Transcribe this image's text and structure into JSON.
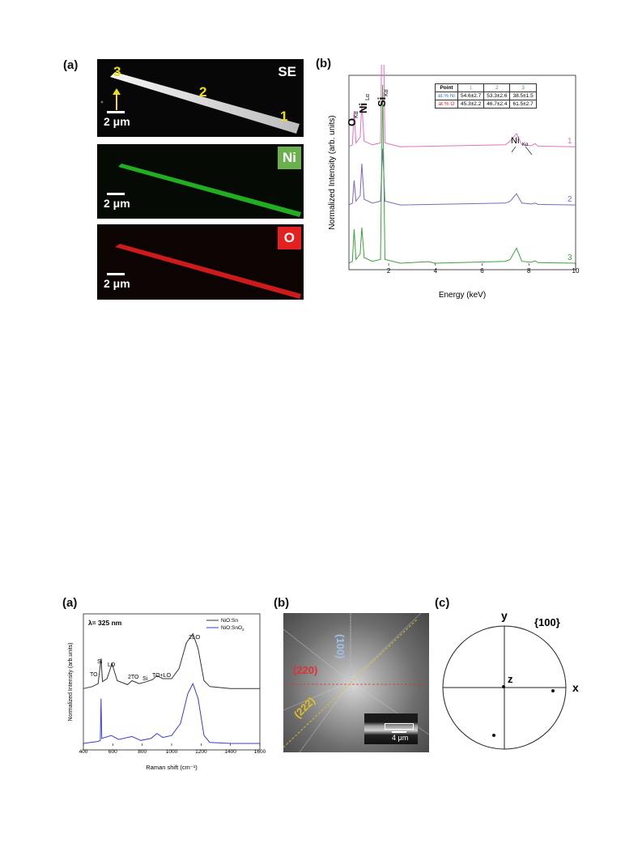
{
  "fig1": {
    "panel_a": {
      "label": "(a)",
      "se": {
        "tag": "SE",
        "markers": [
          "3",
          "2",
          "1"
        ],
        "scale": "2 μm"
      },
      "ni": {
        "tag": "Ni",
        "scale": "2 μm"
      },
      "o": {
        "tag": "O",
        "scale": "2 μm"
      }
    },
    "panel_b": {
      "label": "(b)",
      "peak_labels": {
        "o": "O",
        "o_sub": "Kα",
        "ni_l": "Ni",
        "ni_l_sub": "Lα",
        "si": "Si",
        "si_sub": "Kα",
        "ni_k": "Ni",
        "ni_k_sub": "Kα"
      },
      "table": {
        "headers": [
          "Point",
          "1",
          "2",
          "3"
        ],
        "rows": [
          [
            "at.% Ni",
            "54.6±2.7",
            "53.3±2.6",
            "38.5±1.5"
          ],
          [
            "at.% O",
            "45.3±2.2",
            "46.7±2.4",
            "61.5±2.7"
          ]
        ]
      }
    }
  },
  "fig2": {
    "panel_a": {
      "label": "(a)",
      "wavelength": "λ= 325 nm",
      "peaks": [
        "TO",
        "Si",
        "LO",
        "2TO",
        "Si",
        "TO+LO",
        "2LO"
      ],
      "legend_sup": "2"
    },
    "panel_b": {
      "label": "(b)",
      "dir100": "(100)",
      "dir220": "(220)",
      "dir222": "(222)",
      "inset_scale": "4 μm"
    },
    "panel_c": {
      "label": "(c)",
      "title": "{100}",
      "axis_y": "y",
      "axis_x": "x",
      "axis_z": "z"
    }
  },
  "chart_data": [
    {
      "type": "line",
      "xlabel": "Energy (keV)",
      "ylabel": "Normalized Intensity (arb. units)",
      "xlim": [
        0.3,
        10
      ],
      "xticks": [
        "2",
        "4",
        "6",
        "8",
        "10"
      ],
      "grid": false,
      "series": [
        {
          "name": "1",
          "color": "#e36fc4",
          "offset": 0.62,
          "points": [
            [
              0.3,
              0
            ],
            [
              0.45,
              0.01
            ],
            [
              0.52,
              0.19
            ],
            [
              0.6,
              0.02
            ],
            [
              0.78,
              0.05
            ],
            [
              0.85,
              0.23
            ],
            [
              0.95,
              0.03
            ],
            [
              1.3,
              0.01
            ],
            [
              1.65,
              0.02
            ],
            [
              1.74,
              0.9
            ],
            [
              1.84,
              0.02
            ],
            [
              2.5,
              0
            ],
            [
              7.0,
              0.01
            ],
            [
              7.2,
              0.03
            ],
            [
              7.47,
              0.07
            ],
            [
              7.7,
              0.01
            ],
            [
              8.1,
              0.005
            ],
            [
              8.26,
              0.016
            ],
            [
              8.4,
              0.003
            ],
            [
              10,
              0
            ]
          ]
        },
        {
          "name": "2",
          "color": "#8064bf",
          "offset": 0.31,
          "points": [
            [
              0.3,
              0
            ],
            [
              0.45,
              0.01
            ],
            [
              0.52,
              0.13
            ],
            [
              0.6,
              0.02
            ],
            [
              0.78,
              0.05
            ],
            [
              0.85,
              0.22
            ],
            [
              0.95,
              0.03
            ],
            [
              1.3,
              0.01
            ],
            [
              1.65,
              0.02
            ],
            [
              1.74,
              0.3
            ],
            [
              1.84,
              0.02
            ],
            [
              2.5,
              0
            ],
            [
              7.0,
              0.01
            ],
            [
              7.2,
              0.02
            ],
            [
              7.47,
              0.06
            ],
            [
              7.7,
              0.01
            ],
            [
              8.1,
              0.005
            ],
            [
              8.26,
              0.01
            ],
            [
              8.4,
              0.003
            ],
            [
              10,
              0
            ]
          ]
        },
        {
          "name": "3",
          "color": "#3aa33a",
          "offset": 0.0,
          "points": [
            [
              0.3,
              0
            ],
            [
              0.45,
              0.01
            ],
            [
              0.52,
              0.18
            ],
            [
              0.6,
              0.02
            ],
            [
              0.78,
              0.05
            ],
            [
              0.85,
              0.19
            ],
            [
              0.95,
              0.03
            ],
            [
              1.3,
              0.01
            ],
            [
              1.65,
              0.02
            ],
            [
              1.74,
              0.95
            ],
            [
              1.84,
              0.02
            ],
            [
              2.5,
              0
            ],
            [
              3.69,
              0.008
            ],
            [
              4.0,
              0
            ],
            [
              7.0,
              0.01
            ],
            [
              7.2,
              0.02
            ],
            [
              7.47,
              0.08
            ],
            [
              7.7,
              0.01
            ],
            [
              8.1,
              0.005
            ],
            [
              8.26,
              0.012
            ],
            [
              8.4,
              0.003
            ],
            [
              10,
              0
            ]
          ]
        }
      ]
    },
    {
      "type": "line",
      "xlabel": "Raman shift (cm⁻¹)",
      "ylabel": "Normalized Intensity (arb.units)",
      "xlim": [
        400,
        1600
      ],
      "xticks": [
        "400",
        "600",
        "800",
        "1000",
        "1200",
        "1400",
        "1600"
      ],
      "grid": false,
      "series": [
        {
          "name": "NiO:Sn",
          "color": "#333333",
          "offset": 0.55,
          "points": [
            [
              400,
              0.0
            ],
            [
              460,
              0.02
            ],
            [
              500,
              0.05
            ],
            [
              520,
              0.3
            ],
            [
              530,
              0.07
            ],
            [
              560,
              0.1
            ],
            [
              595,
              0.25
            ],
            [
              630,
              0.08
            ],
            [
              700,
              0.04
            ],
            [
              730,
              0.08
            ],
            [
              780,
              0.05
            ],
            [
              830,
              0.07
            ],
            [
              870,
              0.09
            ],
            [
              900,
              0.13
            ],
            [
              940,
              0.1
            ],
            [
              1000,
              0.1
            ],
            [
              1050,
              0.2
            ],
            [
              1100,
              0.46
            ],
            [
              1145,
              0.55
            ],
            [
              1180,
              0.4
            ],
            [
              1220,
              0.08
            ],
            [
              1260,
              0.02
            ],
            [
              1400,
              0.0
            ],
            [
              1600,
              0.0
            ]
          ]
        },
        {
          "name": "NiO:SnO",
          "color": "#3b3bd9",
          "offset": 0.0,
          "points": [
            [
              400,
              0.0
            ],
            [
              500,
              0.02
            ],
            [
              515,
              0.03
            ],
            [
              520,
              0.45
            ],
            [
              525,
              0.05
            ],
            [
              590,
              0.08
            ],
            [
              640,
              0.04
            ],
            [
              730,
              0.07
            ],
            [
              790,
              0.03
            ],
            [
              860,
              0.05
            ],
            [
              900,
              0.1
            ],
            [
              940,
              0.06
            ],
            [
              1000,
              0.08
            ],
            [
              1060,
              0.2
            ],
            [
              1110,
              0.5
            ],
            [
              1145,
              0.6
            ],
            [
              1180,
              0.45
            ],
            [
              1220,
              0.08
            ],
            [
              1260,
              0.01
            ],
            [
              1400,
              0.0
            ],
            [
              1600,
              0.0
            ]
          ]
        }
      ]
    }
  ]
}
